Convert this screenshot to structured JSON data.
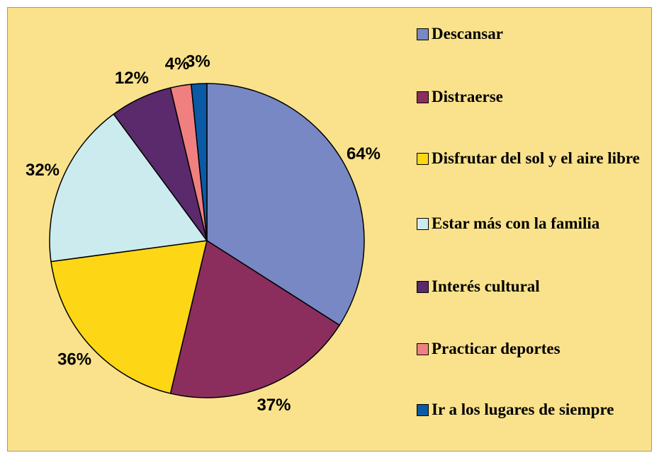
{
  "chart_data": {
    "type": "pie",
    "categories": [
      "Descansar",
      "Distraerse",
      "Disfrutar del sol y el aire libre",
      "Estar más con la familia",
      "Interés cultural",
      "Practicar deportes",
      "Ir a los lugares de siempre"
    ],
    "values": [
      64,
      37,
      36,
      32,
      12,
      4,
      3
    ],
    "value_labels": [
      "64%",
      "37%",
      "36%",
      "32%",
      "12%",
      "4%",
      "3%"
    ],
    "colors": [
      "#7788C4",
      "#8B2E5E",
      "#FDD616",
      "#CCEBEE",
      "#5A2A6C",
      "#F08080",
      "#0A5AA6"
    ],
    "legend": "right"
  }
}
